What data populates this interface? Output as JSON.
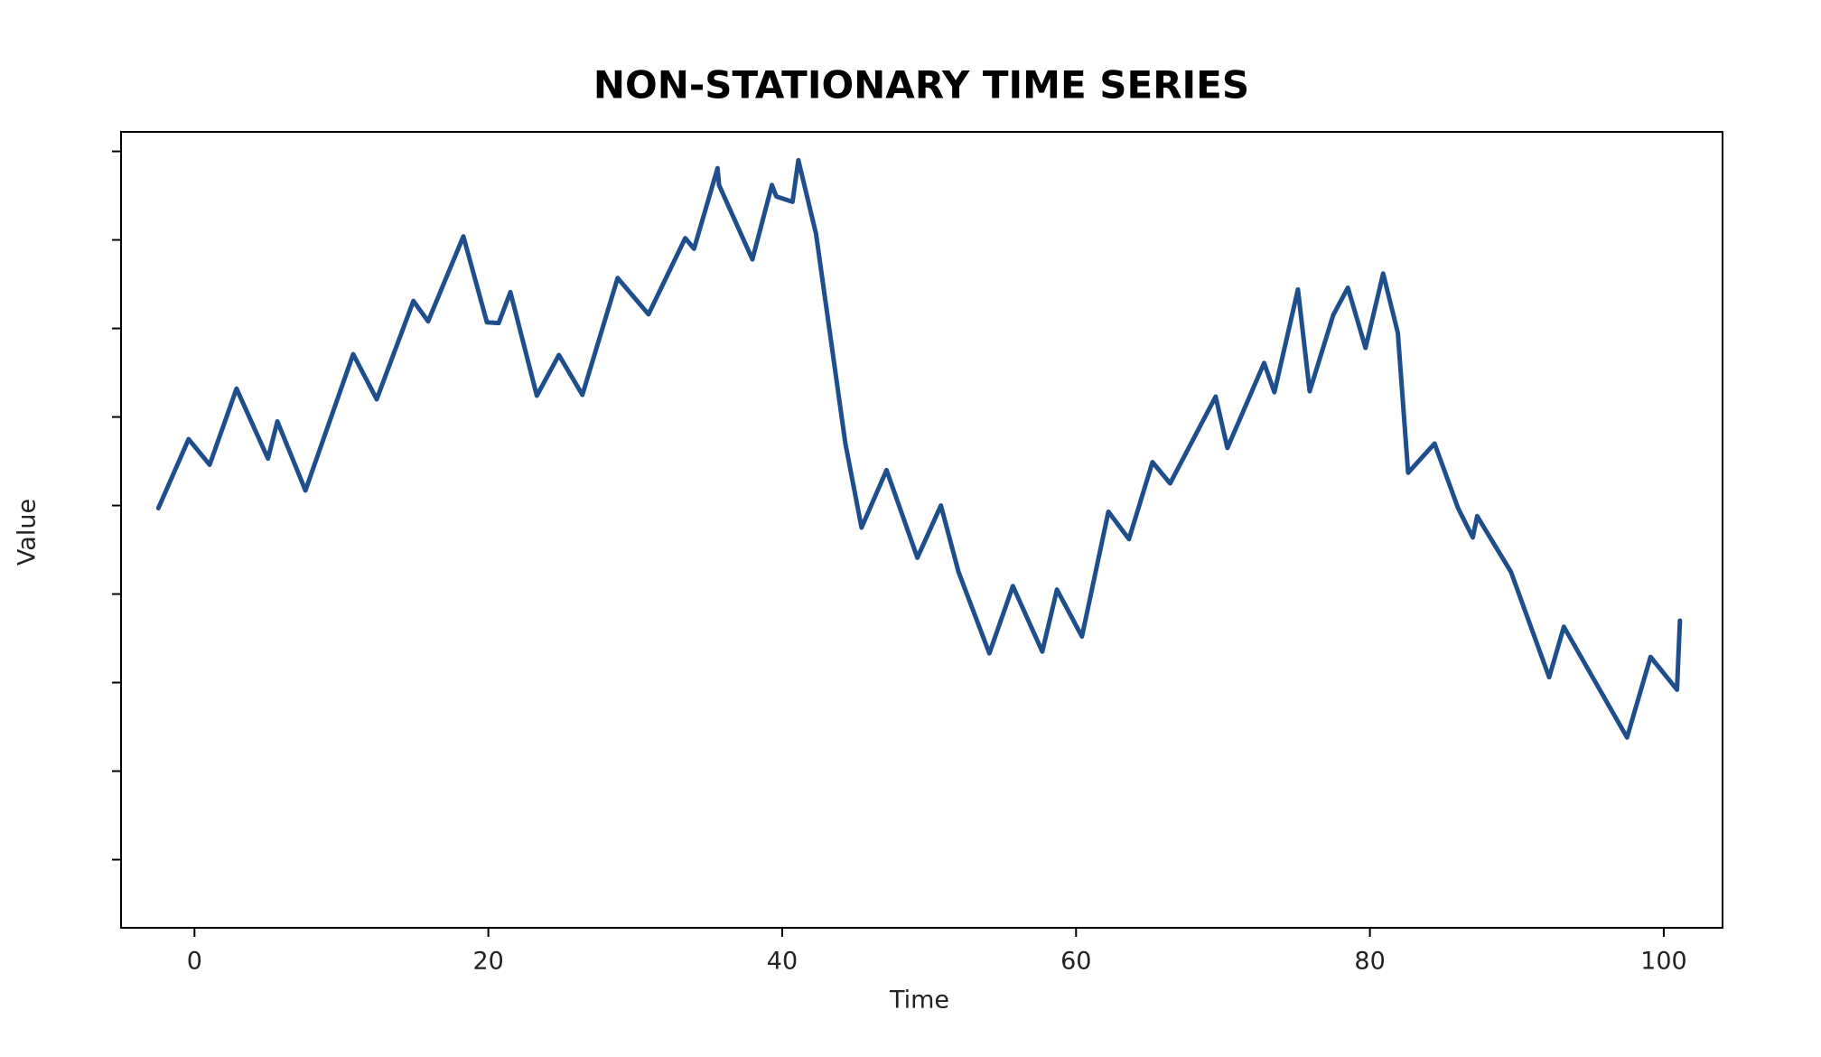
{
  "chart_data": {
    "type": "line",
    "title": "NON-STATIONARY TIME SERIES",
    "xlabel": "Time",
    "ylabel": "Value",
    "color": "#1f4e8c",
    "x": [
      -2.46,
      -0.4,
      1.03,
      2.86,
      5.0,
      5.64,
      7.55,
      10.8,
      12.4,
      14.9,
      15.9,
      18.3,
      19.9,
      20.7,
      21.5,
      23.3,
      24.8,
      26.4,
      28.8,
      30.9,
      33.4,
      34.0,
      35.6,
      35.7,
      37.97,
      39.3,
      39.6,
      40.7,
      41.1,
      42.3,
      44.3,
      45.4,
      47.1,
      49.2,
      50.8,
      52.0,
      54.1,
      55.7,
      57.7,
      58.7,
      60.4,
      62.2,
      63.6,
      65.2,
      66.4,
      69.5,
      70.3,
      72.8,
      73.5,
      75.1,
      75.9,
      77.5,
      78.5,
      79.7,
      80.9,
      81.9,
      82.6,
      84.4,
      86.0,
      87.0,
      87.3,
      89.6,
      92.2,
      93.2,
      97.5,
      99.1,
      100.9,
      101.1
    ],
    "values": [
      -0.03,
      0.75,
      0.46,
      1.32,
      0.53,
      0.95,
      0.17,
      1.71,
      1.2,
      2.31,
      2.08,
      3.04,
      2.07,
      2.06,
      2.41,
      1.24,
      1.7,
      1.25,
      2.57,
      2.16,
      3.02,
      2.9,
      3.81,
      3.62,
      2.78,
      3.62,
      3.49,
      3.43,
      3.9,
      3.07,
      0.7,
      -0.25,
      0.4,
      -0.59,
      0.0,
      -0.75,
      -1.67,
      -0.91,
      -1.65,
      -0.95,
      -1.48,
      -0.07,
      -0.38,
      0.49,
      0.25,
      1.23,
      0.65,
      1.61,
      1.28,
      2.44,
      1.29,
      2.15,
      2.46,
      1.78,
      2.62,
      1.95,
      0.37,
      0.7,
      -0.03,
      -0.36,
      -0.12,
      -0.75,
      -1.94,
      -1.37,
      -2.62,
      -1.71,
      -2.08,
      -1.3
    ],
    "xlim": [
      -5.0,
      104.0
    ],
    "xticks": [
      0,
      20,
      40,
      60,
      80,
      100
    ],
    "ylim": [
      -4.77,
      4.22
    ],
    "yticks": [
      -4,
      -3,
      -2,
      -1,
      0,
      1,
      2,
      3,
      4
    ]
  }
}
